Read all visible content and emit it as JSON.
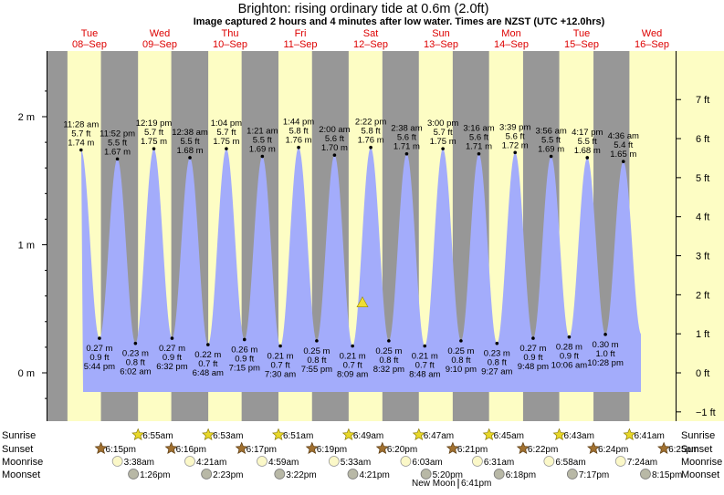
{
  "chart_data": {
    "type": "area",
    "title": "Brighton: rising  ordinary tide at 0.6m (2.0ft)",
    "subtitle": "Image captured 2 hours and 4 minutes after low water. Times are NZST (UTC +12.0hrs)",
    "ylabel_left_unit": "m",
    "ylabel_right_unit": "ft",
    "ylim_m": [
      -0.45,
      2.35
    ],
    "left_ticks": [
      "2 m",
      "1 m",
      "0 m"
    ],
    "right_ticks": [
      "7 ft",
      "6 ft",
      "5 ft",
      "4 ft",
      "3 ft",
      "2 ft",
      "1 ft",
      "0 ft",
      "−1 ft"
    ],
    "days": [
      {
        "dow": "Tue",
        "date": "08–Sep"
      },
      {
        "dow": "Wed",
        "date": "09–Sep"
      },
      {
        "dow": "Thu",
        "date": "10–Sep"
      },
      {
        "dow": "Fri",
        "date": "11–Sep"
      },
      {
        "dow": "Sat",
        "date": "12–Sep"
      },
      {
        "dow": "Sun",
        "date": "13–Sep"
      },
      {
        "dow": "Mon",
        "date": "14–Sep"
      },
      {
        "dow": "Tue",
        "date": "15–Sep"
      },
      {
        "dow": "Wed",
        "date": "16–Sep"
      }
    ],
    "tides": [
      {
        "type": "high",
        "time": "11:28 am",
        "ft": "5.7 ft",
        "m": "1.74 m",
        "height": 1.74
      },
      {
        "type": "low",
        "time": "5:44 pm",
        "ft": "0.9 ft",
        "m": "0.27 m",
        "height": 0.27
      },
      {
        "type": "high",
        "time": "11:52 pm",
        "ft": "5.5 ft",
        "m": "1.67 m",
        "height": 1.67
      },
      {
        "type": "low",
        "time": "6:02 am",
        "ft": "0.8 ft",
        "m": "0.23 m",
        "height": 0.23
      },
      {
        "type": "high",
        "time": "12:19 pm",
        "ft": "5.7 ft",
        "m": "1.75 m",
        "height": 1.75
      },
      {
        "type": "low",
        "time": "6:32 pm",
        "ft": "0.9 ft",
        "m": "0.27 m",
        "height": 0.27
      },
      {
        "type": "high",
        "time": "12:38 am",
        "ft": "5.5 ft",
        "m": "1.68 m",
        "height": 1.68
      },
      {
        "type": "low",
        "time": "6:48 am",
        "ft": "0.7 ft",
        "m": "0.22 m",
        "height": 0.22
      },
      {
        "type": "high",
        "time": "1:04 pm",
        "ft": "5.7 ft",
        "m": "1.75 m",
        "height": 1.75
      },
      {
        "type": "low",
        "time": "7:15 pm",
        "ft": "0.9 ft",
        "m": "0.26 m",
        "height": 0.26
      },
      {
        "type": "high",
        "time": "1:21 am",
        "ft": "5.5 ft",
        "m": "1.69 m",
        "height": 1.69
      },
      {
        "type": "low",
        "time": "7:30 am",
        "ft": "0.7 ft",
        "m": "0.21 m",
        "height": 0.21
      },
      {
        "type": "high",
        "time": "1:44 pm",
        "ft": "5.8 ft",
        "m": "1.76 m",
        "height": 1.76
      },
      {
        "type": "low",
        "time": "7:55 pm",
        "ft": "0.8 ft",
        "m": "0.25 m",
        "height": 0.25
      },
      {
        "type": "high",
        "time": "2:00 am",
        "ft": "5.6 ft",
        "m": "1.70 m",
        "height": 1.7
      },
      {
        "type": "low",
        "time": "8:09 am",
        "ft": "0.7 ft",
        "m": "0.21 m",
        "height": 0.21
      },
      {
        "type": "high",
        "time": "2:22 pm",
        "ft": "5.8 ft",
        "m": "1.76 m",
        "height": 1.76
      },
      {
        "type": "low",
        "time": "8:32 pm",
        "ft": "0.8 ft",
        "m": "0.25 m",
        "height": 0.25
      },
      {
        "type": "high",
        "time": "2:38 am",
        "ft": "5.6 ft",
        "m": "1.71 m",
        "height": 1.71
      },
      {
        "type": "low",
        "time": "8:48 am",
        "ft": "0.7 ft",
        "m": "0.21 m",
        "height": 0.21
      },
      {
        "type": "high",
        "time": "3:00 pm",
        "ft": "5.7 ft",
        "m": "1.75 m",
        "height": 1.75
      },
      {
        "type": "low",
        "time": "9:10 pm",
        "ft": "0.8 ft",
        "m": "0.25 m",
        "height": 0.25
      },
      {
        "type": "high",
        "time": "3:16 am",
        "ft": "5.6 ft",
        "m": "1.71 m",
        "height": 1.71
      },
      {
        "type": "low",
        "time": "9:27 am",
        "ft": "0.8 ft",
        "m": "0.23 m",
        "height": 0.23
      },
      {
        "type": "high",
        "time": "3:39 pm",
        "ft": "5.6 ft",
        "m": "1.72 m",
        "height": 1.72
      },
      {
        "type": "low",
        "time": "9:48 pm",
        "ft": "0.9 ft",
        "m": "0.27 m",
        "height": 0.27
      },
      {
        "type": "high",
        "time": "3:56 am",
        "ft": "5.5 ft",
        "m": "1.69 m",
        "height": 1.69
      },
      {
        "type": "low",
        "time": "10:06 am",
        "ft": "0.9 ft",
        "m": "0.28 m",
        "height": 0.28
      },
      {
        "type": "high",
        "time": "4:17 pm",
        "ft": "5.5 ft",
        "m": "1.68 m",
        "height": 1.68
      },
      {
        "type": "low",
        "time": "10:28 pm",
        "ft": "1.0 ft",
        "m": "0.30 m",
        "height": 0.3
      },
      {
        "type": "high",
        "time": "4:36 am",
        "ft": "5.4 ft",
        "m": "1.65 m",
        "height": 1.65
      }
    ],
    "current_tide_m": 0.6,
    "rows": {
      "sunrise_label": "Sunrise",
      "sunset_label": "Sunset",
      "moonrise_label": "Moonrise",
      "moonset_label": "Moonset",
      "sunrise": [
        "6:55am",
        "6:53am",
        "6:51am",
        "6:49am",
        "6:47am",
        "6:45am",
        "6:43am",
        "6:41am"
      ],
      "sunset": [
        "6:15pm",
        "6:16pm",
        "6:17pm",
        "6:19pm",
        "6:20pm",
        "6:21pm",
        "6:22pm",
        "6:24pm",
        "6:25pm"
      ],
      "moonrise": [
        "3:38am",
        "4:21am",
        "4:59am",
        "5:33am",
        "6:03am",
        "6:31am",
        "6:58am",
        "7:24am"
      ],
      "moonset": [
        "1:26pm",
        "2:23pm",
        "3:22pm",
        "4:21pm",
        "5:20pm",
        "6:18pm",
        "7:17pm",
        "8:15pm"
      ]
    },
    "new_moon": "New Moon",
    "new_moon_time": "6:41pm",
    "colors": {
      "tide_fill": "#a3acfb",
      "day_band": "#fdfdc4",
      "night_band": "#979797",
      "date_color": "#dd0000",
      "marker": "#eedd33"
    }
  }
}
